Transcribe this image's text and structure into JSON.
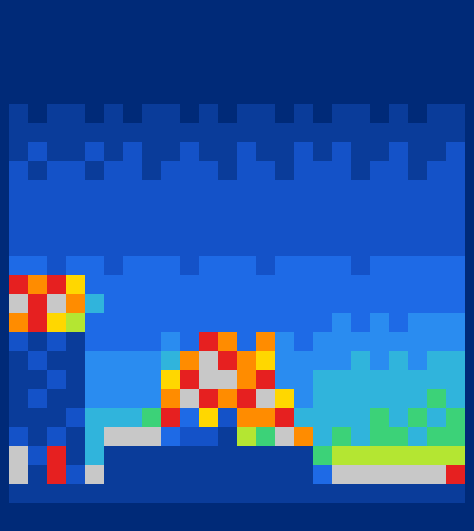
{
  "chart_data": {
    "type": "heatmap",
    "tick_labels": false,
    "cells": [
      [
        0,
        0,
        0,
        0,
        0,
        0,
        0,
        0,
        0,
        0,
        0,
        0,
        0,
        0,
        0,
        0,
        0,
        0,
        0,
        0,
        0,
        0,
        0,
        0
      ],
      [
        0,
        0,
        0,
        0,
        0,
        0,
        0,
        0,
        0,
        0,
        0,
        0,
        0,
        0,
        0,
        0,
        0,
        0,
        0,
        0,
        0,
        0,
        0,
        0
      ],
      [
        0,
        0,
        0,
        0,
        0,
        0,
        0,
        0,
        0,
        0,
        0,
        0,
        0,
        0,
        0,
        0,
        0,
        0,
        0,
        0,
        0,
        0,
        0,
        0
      ],
      [
        0,
        0,
        0,
        0,
        0,
        0,
        0,
        0,
        0,
        0,
        0,
        0,
        0,
        0,
        0,
        0,
        0,
        0,
        0,
        0,
        0,
        0,
        0,
        0
      ],
      [
        0,
        0,
        0,
        0,
        0,
        0,
        0,
        0,
        0,
        0,
        0,
        0,
        0,
        0,
        0,
        0,
        0,
        0,
        0,
        0,
        0,
        0,
        0,
        0
      ],
      [
        1,
        0,
        1,
        1,
        0,
        1,
        0,
        1,
        1,
        0,
        1,
        0,
        1,
        1,
        0,
        1,
        0,
        1,
        1,
        0,
        1,
        0,
        1,
        1
      ],
      [
        1,
        1,
        1,
        1,
        1,
        1,
        1,
        1,
        1,
        1,
        1,
        1,
        1,
        1,
        1,
        1,
        1,
        1,
        1,
        1,
        1,
        1,
        1,
        1
      ],
      [
        1,
        2,
        1,
        1,
        2,
        1,
        2,
        1,
        1,
        2,
        1,
        1,
        2,
        1,
        1,
        2,
        1,
        2,
        1,
        1,
        2,
        1,
        1,
        2
      ],
      [
        2,
        1,
        2,
        2,
        1,
        2,
        2,
        1,
        2,
        2,
        2,
        1,
        2,
        2,
        1,
        2,
        2,
        2,
        1,
        2,
        2,
        1,
        2,
        2
      ],
      [
        2,
        2,
        2,
        2,
        2,
        2,
        2,
        2,
        2,
        2,
        2,
        2,
        2,
        2,
        2,
        2,
        2,
        2,
        2,
        2,
        2,
        2,
        2,
        2
      ],
      [
        2,
        2,
        2,
        2,
        2,
        2,
        2,
        2,
        2,
        2,
        2,
        2,
        2,
        2,
        2,
        2,
        2,
        2,
        2,
        2,
        2,
        2,
        2,
        2
      ],
      [
        2,
        2,
        2,
        2,
        2,
        2,
        2,
        2,
        2,
        2,
        2,
        2,
        2,
        2,
        2,
        2,
        2,
        2,
        2,
        2,
        2,
        2,
        2,
        2
      ],
      [
        2,
        2,
        2,
        2,
        2,
        2,
        2,
        2,
        2,
        2,
        2,
        2,
        2,
        2,
        2,
        2,
        2,
        2,
        2,
        2,
        2,
        2,
        2,
        2
      ],
      [
        3,
        3,
        2,
        3,
        3,
        2,
        3,
        3,
        3,
        2,
        3,
        3,
        3,
        2,
        3,
        3,
        3,
        3,
        2,
        3,
        3,
        3,
        3,
        3
      ],
      [
        10,
        9,
        10,
        8,
        3,
        3,
        3,
        3,
        3,
        3,
        3,
        3,
        3,
        3,
        3,
        3,
        3,
        3,
        3,
        3,
        3,
        3,
        3,
        3
      ],
      [
        11,
        10,
        11,
        9,
        5,
        3,
        3,
        3,
        3,
        3,
        3,
        3,
        3,
        3,
        3,
        3,
        3,
        3,
        3,
        3,
        3,
        3,
        3,
        3
      ],
      [
        9,
        10,
        8,
        7,
        3,
        3,
        3,
        3,
        3,
        3,
        3,
        3,
        3,
        3,
        3,
        3,
        3,
        4,
        3,
        4,
        3,
        4,
        4,
        4
      ],
      [
        2,
        1,
        2,
        1,
        3,
        3,
        3,
        3,
        4,
        3,
        10,
        9,
        3,
        9,
        4,
        3,
        4,
        4,
        4,
        4,
        4,
        4,
        4,
        4
      ],
      [
        1,
        2,
        1,
        1,
        4,
        4,
        4,
        4,
        5,
        9,
        11,
        10,
        9,
        8,
        4,
        4,
        4,
        4,
        5,
        4,
        5,
        4,
        5,
        5
      ],
      [
        1,
        1,
        2,
        1,
        4,
        4,
        4,
        4,
        8,
        10,
        11,
        11,
        9,
        10,
        4,
        4,
        5,
        5,
        5,
        5,
        5,
        5,
        5,
        5
      ],
      [
        1,
        2,
        1,
        1,
        4,
        4,
        4,
        4,
        9,
        11,
        10,
        9,
        10,
        11,
        8,
        4,
        5,
        5,
        5,
        5,
        5,
        5,
        6,
        5
      ],
      [
        1,
        1,
        1,
        2,
        5,
        5,
        5,
        6,
        10,
        3,
        8,
        2,
        9,
        9,
        10,
        5,
        5,
        5,
        5,
        6,
        5,
        6,
        5,
        6
      ],
      [
        2,
        1,
        2,
        1,
        5,
        11,
        11,
        11,
        3,
        2,
        2,
        1,
        7,
        6,
        11,
        9,
        5,
        6,
        5,
        6,
        6,
        5,
        6,
        6
      ],
      [
        11,
        2,
        10,
        1,
        5,
        1,
        1,
        1,
        1,
        1,
        1,
        1,
        1,
        1,
        1,
        1,
        6,
        7,
        7,
        7,
        7,
        7,
        7,
        7
      ],
      [
        11,
        1,
        10,
        2,
        11,
        1,
        1,
        1,
        1,
        1,
        1,
        1,
        1,
        1,
        1,
        1,
        3,
        11,
        11,
        11,
        11,
        11,
        11,
        10
      ],
      [
        1,
        1,
        1,
        1,
        1,
        1,
        1,
        1,
        1,
        1,
        1,
        1,
        1,
        1,
        1,
        1,
        1,
        1,
        1,
        1,
        1,
        1,
        1,
        1
      ],
      [
        0,
        0,
        0,
        0,
        0,
        0,
        0,
        0,
        0,
        0,
        0,
        0,
        0,
        0,
        0,
        0,
        0,
        0,
        0,
        0,
        0,
        0,
        0,
        0
      ]
    ]
  }
}
